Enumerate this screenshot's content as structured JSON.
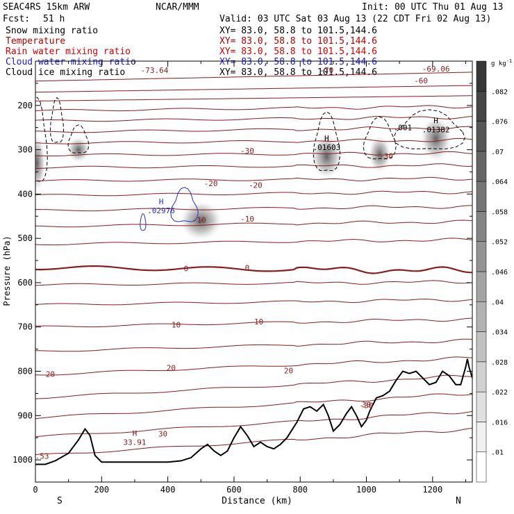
{
  "header": {
    "model": "SEAC4RS 15km ARW",
    "org": "NCAR/MMM",
    "init": "Init: 00 UTC Thu 01 Aug 13",
    "fcst_label": "Fcst:",
    "fcst_value": "51 h",
    "valid": "Valid: 03 UTC Sat 03 Aug 13 (22 CDT Fri 02 Aug 13)"
  },
  "fields": [
    {
      "name": "Snow mixing ratio",
      "xy": "XY=  83.0, 58.8 to 101.5,144.6",
      "color": "#000000"
    },
    {
      "name": "Temperature",
      "xy": "XY=  83.0, 58.8 to 101.5,144.6",
      "color": "#b00000"
    },
    {
      "name": "Rain water mixing ratio",
      "xy": "XY=  83.0, 58.8 to 101.5,144.6",
      "color": "#d00000"
    },
    {
      "name": "Cloud water mixing ratio",
      "xy": "XY=  83.0, 58.8 to 101.5,144.6",
      "color": "#1a1ad0"
    },
    {
      "name": "Cloud ice mixing ratio",
      "xy": "XY=  83.0, 58.8 to 101.5,144.6",
      "color": "#000000"
    }
  ],
  "chart_data": {
    "type": "cross-section",
    "xlabel": "Distance (km)",
    "ylabel": "Pressure (hPa)",
    "xlim": [
      0,
      1320
    ],
    "ylim": [
      1050,
      100
    ],
    "xticks": [
      0,
      200,
      400,
      600,
      800,
      1000,
      1200
    ],
    "yticks": [
      200,
      300,
      400,
      500,
      600,
      700,
      800,
      900,
      1000
    ],
    "end_labels": {
      "left": "S",
      "right": "N"
    },
    "colors": {
      "temperature": "#8b1a1a",
      "cloud_water": "#2030d0",
      "terrain": "#000000",
      "ice_dash": "#000000"
    },
    "colorbar": {
      "unit": "g kg",
      "unit_sup": "-1",
      "ticks": [
        ".01",
        ".016",
        ".022",
        ".028",
        ".034",
        ".04",
        ".046",
        ".052",
        ".058",
        ".064",
        ".07",
        ".076",
        ".082"
      ]
    },
    "temperature_isotherms": [
      {
        "pressure_left": 145,
        "pressure_right": 125,
        "wave": 0
      },
      {
        "pressure_left": 170,
        "pressure_right": 155,
        "wave": 0
      },
      {
        "pressure_left": 190,
        "pressure_right": 178,
        "wave": 0
      },
      {
        "pressure_left": 212,
        "pressure_right": 202,
        "wave": 1
      },
      {
        "pressure_left": 235,
        "pressure_right": 226,
        "wave": 1
      },
      {
        "pressure_left": 260,
        "pressure_right": 250,
        "wave": 1
      },
      {
        "pressure_left": 285,
        "pressure_right": 278,
        "wave": 1
      },
      {
        "pressure_left": 312,
        "pressure_right": 308,
        "wave": 1
      },
      {
        "pressure_left": 340,
        "pressure_right": 335,
        "wave": 1
      },
      {
        "pressure_left": 370,
        "pressure_right": 365,
        "wave": 1
      },
      {
        "pressure_left": 403,
        "pressure_right": 395,
        "wave": 1
      },
      {
        "pressure_left": 437,
        "pressure_right": 428,
        "wave": 1
      },
      {
        "pressure_left": 473,
        "pressure_right": 462,
        "wave": 1
      },
      {
        "pressure_left": 513,
        "pressure_right": 503,
        "wave": 1
      },
      {
        "pressure_left": 566,
        "pressure_right": 573,
        "wave": 2,
        "bold": true
      },
      {
        "pressure_left": 605,
        "pressure_right": 598,
        "wave": 1
      },
      {
        "pressure_left": 650,
        "pressure_right": 638,
        "wave": 1
      },
      {
        "pressure_left": 700,
        "pressure_right": 682,
        "wave": 1
      },
      {
        "pressure_left": 755,
        "pressure_right": 730,
        "wave": 1
      },
      {
        "pressure_left": 808,
        "pressure_right": 770,
        "wave": 1
      },
      {
        "pressure_left": 860,
        "pressure_right": 810,
        "wave": 1
      },
      {
        "pressure_left": 905,
        "pressure_right": 850,
        "wave": 1
      },
      {
        "pressure_left": 948,
        "pressure_right": 890,
        "wave": 1
      },
      {
        "pressure_left": 990,
        "pressure_right": 930,
        "wave": 1
      }
    ],
    "temperature_labels": [
      {
        "text": "-73.64",
        "x": 360,
        "p": 120
      },
      {
        "text": "-70",
        "x": 880,
        "p": 120
      },
      {
        "text": "-69.06",
        "x": 1210,
        "p": 117
      },
      {
        "text": "-60",
        "x": 1165,
        "p": 144
      },
      {
        "text": "-30",
        "x": 640,
        "p": 302
      },
      {
        "text": "-30",
        "x": 1060,
        "p": 314
      },
      {
        "text": "-20",
        "x": 530,
        "p": 376
      },
      {
        "text": "-20",
        "x": 665,
        "p": 380
      },
      {
        "text": "-10",
        "x": 495,
        "p": 458
      },
      {
        "text": "-10",
        "x": 640,
        "p": 456
      },
      {
        "text": "0",
        "x": 455,
        "p": 568
      },
      {
        "text": "0",
        "x": 640,
        "p": 566
      },
      {
        "text": "10",
        "x": 425,
        "p": 695
      },
      {
        "text": "10",
        "x": 675,
        "p": 688
      },
      {
        "text": "20",
        "x": 45,
        "p": 806
      },
      {
        "text": "20",
        "x": 410,
        "p": 792
      },
      {
        "text": "20",
        "x": 765,
        "p": 798
      },
      {
        "text": "30",
        "x": 385,
        "p": 941
      },
      {
        "text": "-30",
        "x": 1000,
        "p": 877
      },
      {
        "text": "30",
        "x": 1000,
        "p": 875
      },
      {
        "text": ".53",
        "x": 20,
        "p": 991
      }
    ],
    "temperature_max": {
      "marker": "H",
      "value": "33.91",
      "x": 300,
      "p": 955
    },
    "cloud_water_max": {
      "marker": "H",
      "value": ".02976",
      "x": 380,
      "p": 432
    },
    "ice_maxima": [
      {
        "marker": "H",
        "value": ".01603",
        "x": 880,
        "p": 290
      },
      {
        "marker": "H",
        "value": ".01382",
        "x": 1210,
        "p": 250
      }
    ],
    "ice_labels": [
      {
        "text": ".001",
        "x": 1110,
        "p": 250
      }
    ],
    "terrain_pressure": [
      [
        0,
        1010
      ],
      [
        30,
        1010
      ],
      [
        60,
        1002
      ],
      [
        100,
        985
      ],
      [
        130,
        955
      ],
      [
        150,
        930
      ],
      [
        165,
        945
      ],
      [
        180,
        990
      ],
      [
        200,
        1005
      ],
      [
        260,
        1005
      ],
      [
        330,
        1005
      ],
      [
        400,
        1005
      ],
      [
        440,
        1002
      ],
      [
        470,
        995
      ],
      [
        500,
        975
      ],
      [
        520,
        965
      ],
      [
        540,
        980
      ],
      [
        560,
        990
      ],
      [
        580,
        980
      ],
      [
        600,
        950
      ],
      [
        620,
        925
      ],
      [
        640,
        945
      ],
      [
        660,
        970
      ],
      [
        680,
        960
      ],
      [
        700,
        970
      ],
      [
        720,
        975
      ],
      [
        740,
        965
      ],
      [
        760,
        950
      ],
      [
        790,
        915
      ],
      [
        810,
        885
      ],
      [
        830,
        880
      ],
      [
        850,
        890
      ],
      [
        870,
        875
      ],
      [
        885,
        900
      ],
      [
        900,
        935
      ],
      [
        920,
        920
      ],
      [
        940,
        895
      ],
      [
        955,
        880
      ],
      [
        970,
        900
      ],
      [
        985,
        925
      ],
      [
        1000,
        910
      ],
      [
        1010,
        890
      ],
      [
        1030,
        860
      ],
      [
        1050,
        855
      ],
      [
        1070,
        845
      ],
      [
        1090,
        820
      ],
      [
        1110,
        800
      ],
      [
        1130,
        805
      ],
      [
        1150,
        800
      ],
      [
        1170,
        815
      ],
      [
        1190,
        830
      ],
      [
        1210,
        825
      ],
      [
        1230,
        800
      ],
      [
        1250,
        810
      ],
      [
        1270,
        830
      ],
      [
        1285,
        830
      ],
      [
        1300,
        790
      ],
      [
        1305,
        772
      ],
      [
        1310,
        790
      ],
      [
        1320,
        815
      ]
    ]
  }
}
